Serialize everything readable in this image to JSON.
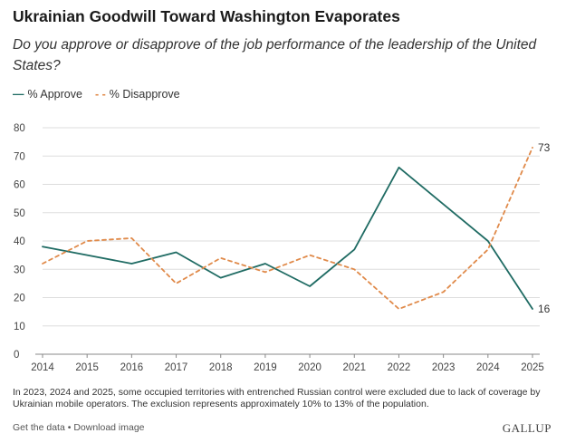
{
  "header": {
    "title": "Ukrainian Goodwill Toward Washington Evaporates",
    "subtitle": "Do you approve or disapprove of the job performance of the leadership of the United States?"
  },
  "colors": {
    "approve": "#1f6b63",
    "disapprove": "#e08a4a",
    "grid": "#dddddd",
    "axis": "#888888"
  },
  "chart_data": {
    "type": "line",
    "title": "Ukrainian Goodwill Toward Washington Evaporates",
    "subtitle": "Do you approve or disapprove of the job performance of the leadership of the United States?",
    "xlabel": "",
    "ylabel": "",
    "x": [
      2014,
      2015,
      2016,
      2017,
      2018,
      2019,
      2020,
      2021,
      2022,
      2023,
      2024,
      2025
    ],
    "x_labels": [
      "2014",
      "2015",
      "2016",
      "2017",
      "2018",
      "2019",
      "2020",
      "2021",
      "2022",
      "2023",
      "2024",
      "2025"
    ],
    "ylim": [
      0,
      80
    ],
    "yticks": [
      0,
      10,
      20,
      30,
      40,
      50,
      60,
      70,
      80
    ],
    "grid": true,
    "legend": "top-left",
    "series": [
      {
        "name": "% Approve",
        "style": "solid",
        "values": [
          38,
          35,
          32,
          36,
          27,
          32,
          24,
          37,
          66,
          53,
          40,
          16
        ],
        "end_label": "16"
      },
      {
        "name": "% Disapprove",
        "style": "dashed",
        "values": [
          32,
          40,
          41,
          25,
          34,
          29,
          35,
          30,
          16,
          22,
          37,
          73
        ],
        "end_label": "73"
      }
    ]
  },
  "footnote": "In 2023, 2024 and 2025, some occupied territories with entrenched Russian control were excluded due to lack of coverage by Ukrainian mobile operators. The exclusion represents approximately 10% to 13% of the population.",
  "footer": {
    "get_data": "Get the data",
    "separator": " • ",
    "download": "Download image",
    "brand": "GALLUP"
  }
}
